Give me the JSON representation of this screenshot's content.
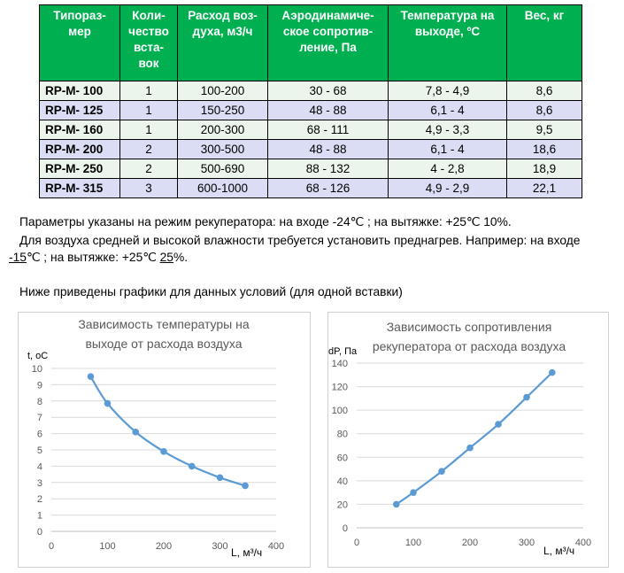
{
  "table": {
    "headers": [
      "Типораз-\nмер",
      "Коли-\nчество\nвста-\nвок",
      "Расход воз-\nдуха, м3/ч",
      "Аэродинамиче-\nское сопротив-\nление, Па",
      "Температура на\nвыходе, ºС",
      "Вес, кг"
    ],
    "rows": [
      {
        "model": "RP-M- 100",
        "count": "1",
        "flow": "100-200",
        "resistance": "30 - 68",
        "temp": "7,8 - 4,9",
        "weight": "8,6"
      },
      {
        "model": "RP-M- 125",
        "count": "1",
        "flow": "150-250",
        "resistance": "48 - 88",
        "temp": "6,1 - 4",
        "weight": "8,6"
      },
      {
        "model": "RP-M- 160",
        "count": "1",
        "flow": "200-300",
        "resistance": "68 - 111",
        "temp": "4,9 - 3,3",
        "weight": "9,5"
      },
      {
        "model": "RP-M- 200",
        "count": "2",
        "flow": "300-500",
        "resistance": "48 - 88",
        "temp": "6,1 - 4",
        "weight": "18,6"
      },
      {
        "model": "RP-M- 250",
        "count": "2",
        "flow": "500-690",
        "resistance": "88 - 132",
        "temp": "4 - 2,8",
        "weight": "18,9"
      },
      {
        "model": "RP-M- 315",
        "count": "3",
        "flow": "600-1000",
        "resistance": "68 - 126",
        "temp": "4,9 - 2,9",
        "weight": "22,1"
      }
    ]
  },
  "text": {
    "p1": "Параметры указаны на режим рекуператора: на входе -24℃ ; на вытяжке: +25℃  10%.",
    "p2": "Для воздуха средней и высокой влажности требуется установить преднагрев. Например: на входе",
    "p3_a": "-15",
    "p3_b": "℃ ; на вытяжке: +25℃  ",
    "p3_c": "25",
    "p3_d": "%.",
    "p4": "Ниже приведены графики для данных условий (для одной вставки)"
  },
  "chart_data": [
    {
      "type": "line",
      "title": "Зависимость температуры на выходе от расхода воздуха",
      "title_lines": [
        "Зависимость температуры на",
        "выходе от расхода воздуха"
      ],
      "ylabel": "t, oC",
      "xlabel": "L, м³/ч",
      "xlim": [
        0,
        400
      ],
      "ylim": [
        0,
        10
      ],
      "xticks": [
        0,
        100,
        200,
        300,
        400
      ],
      "yticks": [
        0,
        1,
        2,
        3,
        4,
        5,
        6,
        7,
        8,
        9,
        10
      ],
      "grid": true,
      "color": "#5B9BD5",
      "x": [
        70,
        100,
        150,
        200,
        250,
        300,
        345
      ],
      "y": [
        9.5,
        7.85,
        6.1,
        4.9,
        4.0,
        3.3,
        2.8
      ]
    },
    {
      "type": "line",
      "title": "Зависимость сопротивления рекуператора от расхода воздуха",
      "title_lines": [
        "Зависимость сопротивления",
        "рекуператора от расхода воздуха"
      ],
      "ylabel": "dP, Па",
      "xlabel": "L, м³/ч",
      "xlim": [
        0,
        400
      ],
      "ylim": [
        0,
        140
      ],
      "xticks": [
        0,
        100,
        200,
        300,
        400
      ],
      "yticks": [
        0,
        20,
        40,
        60,
        80,
        100,
        120,
        140
      ],
      "grid": true,
      "color": "#5B9BD5",
      "x": [
        70,
        100,
        150,
        200,
        250,
        300,
        345
      ],
      "y": [
        20,
        30,
        48,
        68,
        88,
        111,
        132
      ]
    }
  ]
}
